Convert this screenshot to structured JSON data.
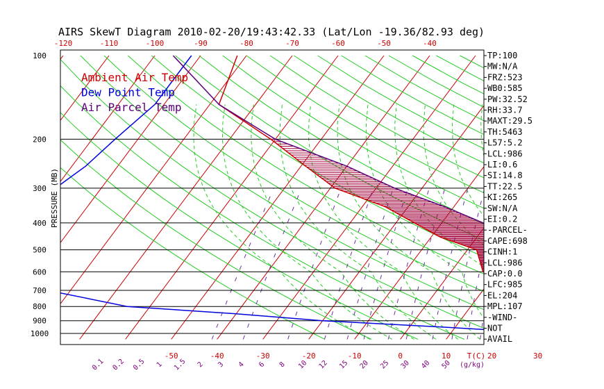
{
  "title": "AIRS SkewT Diagram 2010-02-20/19:43:42.33 (Lat/Lon -19.36/82.93 deg)",
  "legend": [
    {
      "label": "Ambient Air Temp",
      "color": "#cc0000"
    },
    {
      "label": "Dew Point Temp",
      "color": "#0000dd"
    },
    {
      "label": "Air Parcel Temp",
      "color": "#5a007a"
    }
  ],
  "params": [
    "TP:100",
    "MW:N/A",
    "FRZ:523",
    "WB0:585",
    "PW:32.52",
    "RH:33.7",
    "MAXT:29.5",
    "TH:5463",
    "L57:5.2",
    "LCL:986",
    "LI:0.6",
    "SI:14.8",
    "TT:22.5",
    "KI:265",
    "SW:N/A",
    "EI:0.2",
    "-PARCEL-",
    "CAPE:698",
    "CINH:1",
    "LCL:986",
    "CAP:0.0",
    "LFC:985",
    "EL:204",
    "MPL:107",
    "-WIND-",
    "NOT",
    "AVAIL"
  ],
  "chart_data": {
    "type": "line",
    "title": "AIRS SkewT Diagram 2010-02-20/19:43:42.33 (Lat/Lon -19.36/82.93 deg)",
    "ylabel": "PRESSURE (MB)",
    "xlabel": "T(C)",
    "y_scale": "log",
    "ylim": [
      1050,
      100
    ],
    "pressure_ticks": [
      100,
      200,
      300,
      400,
      500,
      600,
      700,
      800,
      900,
      1000
    ],
    "pressure_tick_labels": [
      "100",
      "200",
      "300",
      "400",
      "500",
      "600",
      "700",
      "800",
      "900",
      "1000"
    ],
    "top_temp_ticks": [
      -120,
      -110,
      -100,
      -90,
      -80,
      -70,
      -60,
      -50,
      -40
    ],
    "top_temp_labels": [
      "-120",
      "-110",
      "-100",
      "-90",
      "-80",
      "-70",
      "-60",
      "-50",
      "-40"
    ],
    "bottom_temp_ticks": [
      -50,
      -40,
      -30,
      -20,
      -10,
      0,
      10,
      20,
      30
    ],
    "bottom_temp_labels": [
      "-50",
      "-40",
      "-30",
      "-20",
      "-10",
      "0",
      "10",
      "20",
      "30"
    ],
    "bottom_temp_unit": "T(C)",
    "mixing_ratio_labels": [
      "0.1",
      "0.2",
      "0.5",
      "1",
      "1.5",
      "2",
      "3",
      "4",
      "6",
      "8",
      "10",
      "12",
      "15",
      "20",
      "25",
      "30",
      "40",
      "50"
    ],
    "mixing_ratio_unit": "(g/kg)",
    "series": [
      {
        "name": "Ambient Air Temp",
        "color": "#cc0000",
        "x": [
          -82,
          -78,
          -61,
          -49,
          -39,
          -25,
          -16,
          -8,
          2,
          7,
          16,
          22,
          24,
          22,
          24
        ],
        "y": [
          100,
          150,
          200,
          250,
          300,
          350,
          400,
          450,
          500,
          600,
          700,
          800,
          900,
          950,
          1000
        ]
      },
      {
        "name": "Dew Point Temp",
        "color": "#0000dd",
        "x": [
          -92,
          -92,
          -92,
          -95,
          -97,
          -100,
          -103,
          -106,
          -106,
          -106,
          -102,
          -85,
          -65,
          -40,
          -20,
          8,
          20,
          21,
          24
        ],
        "y": [
          100,
          120,
          150,
          200,
          250,
          300,
          350,
          400,
          450,
          500,
          600,
          700,
          800,
          850,
          900,
          950,
          975,
          990,
          1000
        ]
      },
      {
        "name": "Air Parcel Temp",
        "color": "#5a007a",
        "x": [
          -96,
          -78,
          -60,
          -40,
          -26,
          -12,
          -1,
          6,
          12,
          17,
          21,
          24,
          26,
          27,
          26
        ],
        "y": [
          100,
          150,
          200,
          250,
          300,
          350,
          400,
          450,
          500,
          600,
          700,
          800,
          900,
          950,
          1000
        ]
      }
    ]
  }
}
